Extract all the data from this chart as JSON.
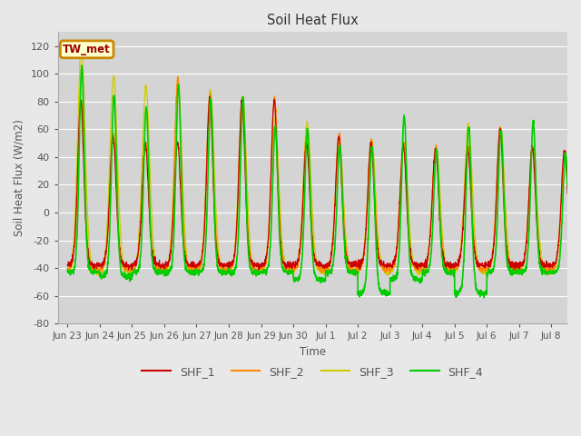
{
  "title": "Soil Heat Flux",
  "ylabel": "Soil Heat Flux (W/m2)",
  "xlabel": "Time",
  "ylim": [
    -80,
    130
  ],
  "bg_color": "#e8e8e8",
  "plot_bg_color": "#d4d4d4",
  "series_colors": [
    "#cc0000",
    "#ff8800",
    "#cccc00",
    "#00cc00"
  ],
  "series_names": [
    "SHF_1",
    "SHF_2",
    "SHF_3",
    "SHF_4"
  ],
  "annotation_text": "TW_met",
  "annotation_bg": "#ffffcc",
  "annotation_border": "#cc8800",
  "tick_labels": [
    "Jun 23",
    "Jun 24",
    "Jun 25",
    "Jun 26",
    "Jun 27",
    "Jun 28",
    "Jun 29",
    "Jun 30",
    "Jul 1",
    "Jul 2",
    "Jul 3",
    "Jul 4",
    "Jul 5",
    "Jul 6",
    "Jul 7",
    "Jul 8"
  ],
  "yticks": [
    -80,
    -60,
    -40,
    -20,
    0,
    20,
    40,
    60,
    80,
    100,
    120
  ],
  "num_days": 16,
  "points_per_day": 144,
  "day_peaks_shf1": [
    80,
    55,
    50,
    50,
    82,
    80,
    80,
    50,
    55,
    50,
    48,
    45,
    45,
    60,
    47,
    45
  ],
  "day_peaks_shf2": [
    80,
    55,
    50,
    98,
    85,
    83,
    83,
    55,
    57,
    52,
    50,
    47,
    47,
    61,
    47,
    40
  ],
  "day_peaks_shf3": [
    120,
    98,
    91,
    92,
    88,
    84,
    68,
    65,
    50,
    52,
    50,
    47,
    63,
    61,
    46,
    40
  ],
  "day_peaks_shf4": [
    105,
    84,
    76,
    92,
    82,
    83,
    62,
    60,
    48,
    48,
    70,
    45,
    62,
    60,
    65,
    42
  ],
  "night_base": -38,
  "night_trough_shf4_extra": [
    -5,
    -8,
    -5,
    -5,
    -5,
    -5,
    -5,
    -10,
    -5,
    -20,
    -10,
    -5,
    -20,
    -5,
    -5,
    -5
  ]
}
